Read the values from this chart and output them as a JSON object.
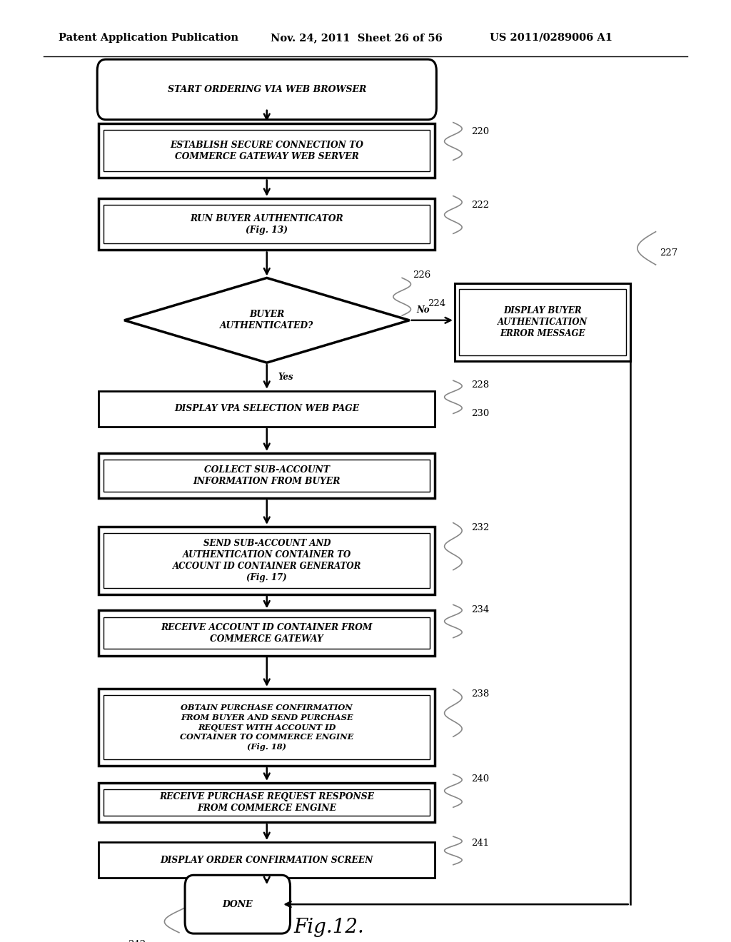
{
  "bg_color": "#ffffff",
  "header_left": "Patent Application Publication",
  "header_mid": "Nov. 24, 2011  Sheet 26 of 56",
  "header_right": "US 2011/0289006 A1",
  "fig_label": "Fig.12."
}
